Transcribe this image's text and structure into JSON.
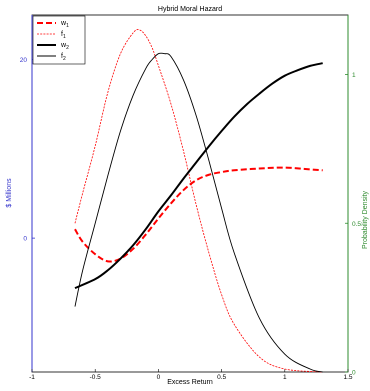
{
  "chart_data": {
    "type": "line",
    "title": "Hybrid Moral Hazard",
    "xlabel": "Excess Return",
    "ylabel_left": "$ Millions",
    "ylabel_right": "Probability Density",
    "xlim": [
      -1,
      1.5
    ],
    "ylim_left": [
      -15,
      25
    ],
    "ylim_right": [
      0,
      1.2
    ],
    "grid": false,
    "legend_position": "top-left",
    "x_ticks": [
      "-1",
      "-0.5",
      "0",
      "0.5",
      "1",
      "1.5"
    ],
    "x_tick_values": [
      -1,
      -0.5,
      0,
      0.5,
      1,
      1.5
    ],
    "y_left_ticks": [
      "0",
      "20"
    ],
    "y_left_tick_values": [
      0,
      20
    ],
    "y_right_ticks": [
      "0",
      "0.5",
      "1"
    ],
    "y_right_tick_values": [
      0,
      0.5,
      1
    ],
    "colors": {
      "left_axis": "#3333cc",
      "right_axis": "#2e8b2e",
      "red": "#ff0000",
      "black": "#000000"
    },
    "series": [
      {
        "name": "w",
        "sub": "1",
        "axis": "left",
        "color": "#ff0000",
        "style": "dashed-thick",
        "x": [
          -0.66,
          -0.6,
          -0.5,
          -0.4,
          -0.3,
          -0.2,
          -0.1,
          0.0,
          0.1,
          0.2,
          0.3,
          0.4,
          0.5,
          0.6,
          0.8,
          1.0,
          1.2,
          1.3
        ],
        "y": [
          1.0,
          -0.4,
          -1.8,
          -2.6,
          -2.3,
          -1.2,
          0.4,
          2.2,
          3.9,
          5.4,
          6.5,
          7.1,
          7.4,
          7.6,
          7.8,
          7.9,
          7.7,
          7.6
        ]
      },
      {
        "name": "f",
        "sub": "1",
        "axis": "right",
        "color": "#ff0000",
        "style": "dashed-thin",
        "x": [
          -0.66,
          -0.6,
          -0.5,
          -0.4,
          -0.3,
          -0.2,
          -0.15,
          -0.1,
          -0.05,
          0.0,
          0.1,
          0.2,
          0.3,
          0.4,
          0.5,
          0.6,
          0.8,
          1.0,
          1.3
        ],
        "y": [
          0.5,
          0.6,
          0.76,
          0.94,
          1.07,
          1.14,
          1.15,
          1.13,
          1.09,
          1.03,
          0.9,
          0.74,
          0.56,
          0.4,
          0.26,
          0.16,
          0.05,
          0.01,
          0.0
        ]
      },
      {
        "name": "w",
        "sub": "2",
        "axis": "left",
        "color": "#000000",
        "style": "solid-thick",
        "x": [
          -0.66,
          -0.5,
          -0.4,
          -0.3,
          -0.2,
          -0.1,
          0.0,
          0.1,
          0.2,
          0.3,
          0.4,
          0.5,
          0.6,
          0.7,
          0.8,
          0.9,
          1.0,
          1.1,
          1.2,
          1.3
        ],
        "y": [
          -5.6,
          -4.6,
          -3.6,
          -2.3,
          -0.8,
          1.0,
          3.0,
          4.8,
          6.7,
          8.5,
          10.3,
          12.0,
          13.6,
          15.0,
          16.2,
          17.3,
          18.2,
          18.8,
          19.3,
          19.6
        ]
      },
      {
        "name": "f",
        "sub": "2",
        "axis": "right",
        "color": "#000000",
        "style": "solid-thin",
        "x": [
          -0.66,
          -0.6,
          -0.5,
          -0.4,
          -0.3,
          -0.2,
          -0.1,
          -0.05,
          0.0,
          0.05,
          0.1,
          0.2,
          0.3,
          0.4,
          0.5,
          0.6,
          0.8,
          1.0,
          1.2,
          1.3
        ],
        "y": [
          0.22,
          0.34,
          0.5,
          0.66,
          0.81,
          0.93,
          1.02,
          1.05,
          1.07,
          1.07,
          1.06,
          0.98,
          0.86,
          0.71,
          0.55,
          0.4,
          0.18,
          0.06,
          0.01,
          0.0
        ]
      }
    ]
  }
}
